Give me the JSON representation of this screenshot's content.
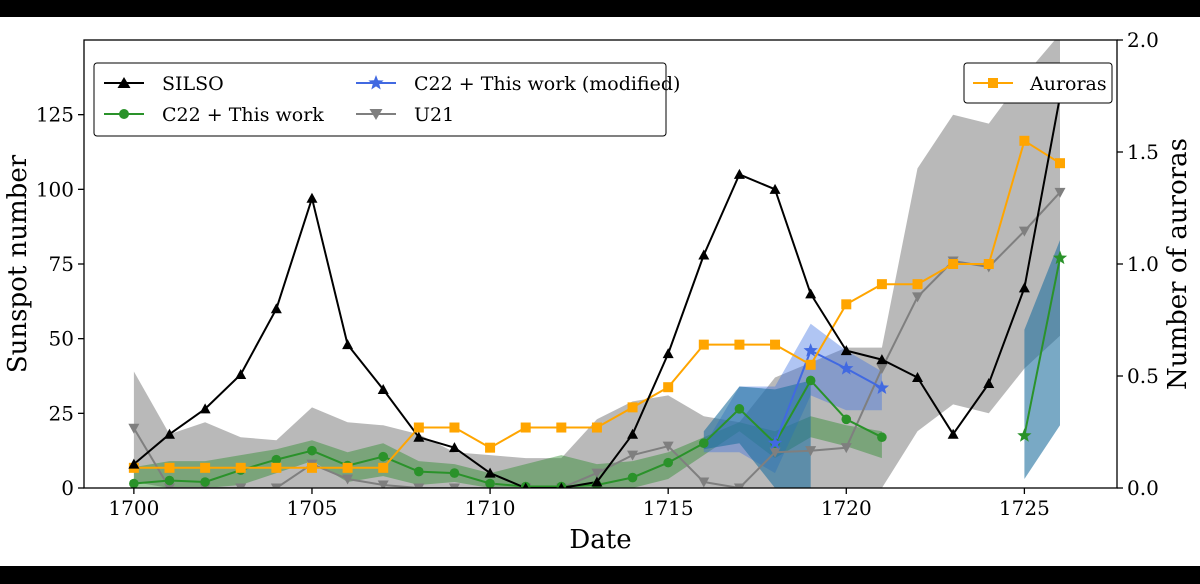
{
  "chart_data": {
    "type": "line",
    "x_label": "Date",
    "y_label_left": "Sunspot number",
    "y_label_right": "Number of auroras",
    "xlim": [
      1698.6,
      1727.6
    ],
    "ylim_left": [
      0,
      150
    ],
    "ylim_right": [
      0,
      2.0
    ],
    "x_ticks": [
      1700,
      1705,
      1710,
      1715,
      1720,
      1725
    ],
    "y_ticks_left": [
      0,
      25,
      50,
      75,
      100,
      125
    ],
    "y_ticks_right": [
      0.0,
      0.5,
      1.0,
      1.5,
      2.0
    ],
    "colors": {
      "silso": "#000000",
      "c22": "#2a922a",
      "c22_mod": "#4169e1",
      "u21": "#7f7f7f",
      "auroras": "#ffa500",
      "u21_band": "#808080",
      "c22_band": "#2e8b2e",
      "mod_band": "#3a6fe0",
      "late_band": "#1f6f9f"
    },
    "series": [
      {
        "key": "silso",
        "name": "SILSO",
        "axis": "left",
        "marker": "triangle-up",
        "x": [
          1700,
          1701,
          1702,
          1703,
          1704,
          1705,
          1706,
          1707,
          1708,
          1709,
          1710,
          1711,
          1712,
          1713,
          1714,
          1715,
          1716,
          1717,
          1718,
          1719,
          1720,
          1721,
          1722,
          1723,
          1724,
          1725,
          1726
        ],
        "values": [
          8,
          18,
          26.5,
          38,
          60,
          97,
          48,
          33,
          17,
          13.5,
          5,
          0,
          0,
          2,
          18,
          45,
          78,
          105,
          100,
          65,
          46,
          43,
          37,
          18,
          35,
          67,
          131
        ]
      },
      {
        "key": "c22",
        "name": "C22 + This work",
        "axis": "left",
        "marker": "circle",
        "x": [
          1700,
          1701,
          1702,
          1703,
          1704,
          1705,
          1706,
          1707,
          1708,
          1709,
          1710,
          1711,
          1712,
          1713,
          1714,
          1715,
          1716,
          1717,
          1718,
          1719,
          1720,
          1721
        ],
        "values": [
          1.5,
          2.5,
          2,
          6,
          9.5,
          12.5,
          7.5,
          10.5,
          5.5,
          5,
          1.5,
          0.5,
          0.5,
          1,
          3.5,
          8.5,
          15,
          26.5,
          15,
          36,
          23,
          17
        ]
      },
      {
        "key": "c22_late",
        "name": "",
        "axis": "left",
        "marker": "star",
        "x": [
          1725,
          1726
        ],
        "values": [
          17.5,
          77
        ]
      },
      {
        "key": "c22_mod",
        "name": "C22 + This work (modified)",
        "axis": "left",
        "marker": "star",
        "x": [
          1718,
          1719,
          1720,
          1721
        ],
        "values": [
          15,
          46,
          40,
          33.5
        ]
      },
      {
        "key": "u21",
        "name": "U21",
        "axis": "left",
        "marker": "triangle-down",
        "x": [
          1700,
          1701,
          1702,
          1703,
          1704,
          1705,
          1706,
          1707,
          1708,
          1709,
          1710,
          1711,
          1712,
          1713,
          1714,
          1715,
          1716,
          1717,
          1718,
          1719,
          1720,
          1721,
          1722,
          1723,
          1724,
          1725,
          1726
        ],
        "values": [
          20,
          0,
          0,
          0,
          0,
          8,
          3,
          1,
          0,
          0,
          0,
          0,
          0,
          5,
          11,
          14,
          2,
          0,
          12,
          12.5,
          13.5,
          40,
          64,
          76,
          74,
          86,
          99
        ]
      },
      {
        "key": "auroras",
        "name": "Auroras",
        "axis": "right",
        "marker": "square",
        "x": [
          1700,
          1701,
          1702,
          1703,
          1704,
          1705,
          1706,
          1707,
          1708,
          1709,
          1710,
          1711,
          1712,
          1713,
          1714,
          1715,
          1716,
          1717,
          1718,
          1719,
          1720,
          1721,
          1722,
          1723,
          1724,
          1725,
          1726
        ],
        "values": [
          0.09,
          0.09,
          0.09,
          0.09,
          0.09,
          0.09,
          0.09,
          0.09,
          0.27,
          0.27,
          0.18,
          0.27,
          0.27,
          0.27,
          0.36,
          0.45,
          0.64,
          0.64,
          0.64,
          0.55,
          0.82,
          0.91,
          0.91,
          1.0,
          1.0,
          1.55,
          1.45
        ]
      }
    ],
    "bands": [
      {
        "key": "u21_band",
        "x": [
          1700,
          1701,
          1702,
          1703,
          1704,
          1705,
          1706,
          1707,
          1708,
          1709,
          1710,
          1711,
          1712,
          1713,
          1714,
          1715,
          1716,
          1717,
          1718,
          1719,
          1720,
          1721,
          1722,
          1723,
          1724,
          1725,
          1726
        ],
        "upper": [
          39,
          18,
          22,
          17,
          16,
          27,
          22,
          21,
          18,
          12,
          11,
          10,
          10,
          23,
          29,
          31,
          24,
          22,
          37,
          42,
          47,
          47,
          107,
          125,
          122,
          138,
          152
        ],
        "lower": [
          2,
          0,
          0,
          0,
          0,
          0,
          0,
          0,
          0,
          0,
          0,
          0,
          0,
          0,
          0,
          0,
          0,
          0,
          0,
          0,
          0,
          0,
          19,
          28,
          25,
          40,
          51
        ]
      },
      {
        "key": "c22_band",
        "x": [
          1700,
          1701,
          1702,
          1703,
          1704,
          1705,
          1706,
          1707,
          1708,
          1709,
          1710,
          1711,
          1712,
          1713,
          1714,
          1715,
          1716,
          1717,
          1718,
          1719,
          1720,
          1721
        ],
        "upper": [
          7,
          9,
          9,
          11,
          13,
          16,
          12,
          15,
          9,
          8,
          5,
          8,
          11,
          8,
          9,
          12,
          17,
          22,
          19,
          24,
          21,
          19
        ],
        "lower": [
          0,
          0,
          0,
          1,
          5,
          9,
          2,
          4,
          1,
          2,
          0,
          0,
          0,
          0,
          0,
          3,
          11,
          19,
          10,
          17,
          14,
          10
        ]
      },
      {
        "key": "mod_band",
        "x": [
          1716,
          1717,
          1718,
          1719,
          1720,
          1721
        ],
        "upper": [
          14,
          34,
          34,
          55,
          46,
          39
        ],
        "lower": [
          12,
          12,
          5,
          31,
          26,
          26
        ]
      },
      {
        "key": "late_band",
        "x": [
          1716,
          1717,
          1718,
          1719,
          1725,
          1726
        ],
        "upper": [
          19,
          34,
          33,
          36,
          53,
          83
        ],
        "lower": [
          13,
          15,
          0,
          0,
          3,
          21
        ]
      }
    ],
    "legend_left": [
      "SILSO",
      "C22 + This work",
      "C22 + This work (modified)",
      "U21"
    ],
    "legend_right": [
      "Auroras"
    ],
    "legend_left_position": "upper-left",
    "legend_right_position": "upper-right"
  }
}
